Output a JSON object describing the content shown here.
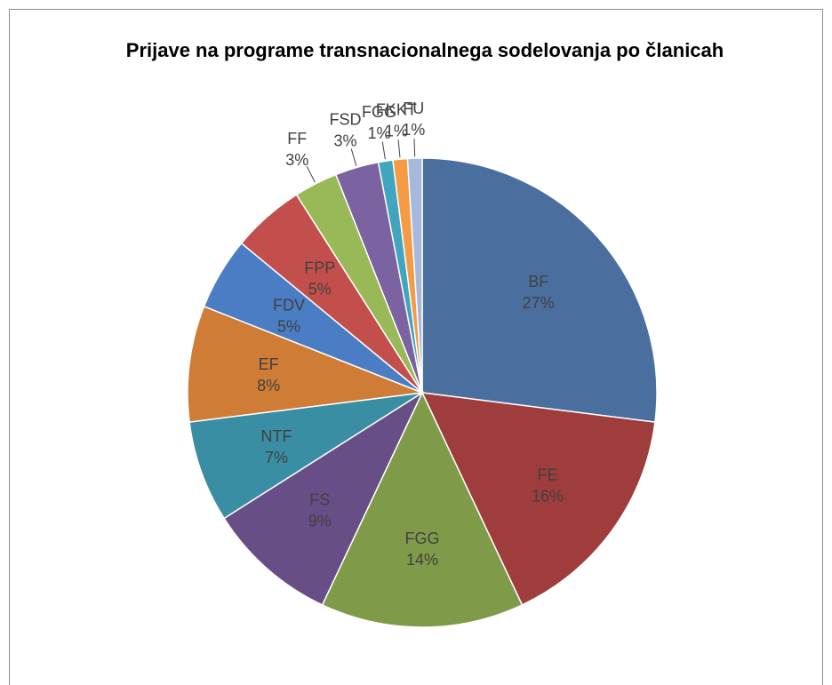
{
  "chart_data": {
    "type": "pie",
    "title": "Prijave na programe transnacionalnega sodelovanja po članicah",
    "categories": [
      "BF",
      "FE",
      "FGG",
      "FS",
      "NTF",
      "EF",
      "FDV",
      "FPP",
      "FF",
      "FSD",
      "FGG",
      "FKKT",
      "FU"
    ],
    "values": [
      27,
      16,
      14,
      9,
      7,
      8,
      5,
      5,
      3,
      3,
      1,
      1,
      1
    ],
    "value_labels": [
      "27%",
      "16%",
      "14%",
      "9%",
      "7%",
      "8%",
      "5%",
      "5%",
      "3%",
      "3%",
      "1%",
      "1%",
      "1%"
    ],
    "colors": [
      "#4a6f9f",
      "#9e3d3b",
      "#7f9b49",
      "#674e87",
      "#3a8ea3",
      "#cf7c37",
      "#4b7dc4",
      "#c24f4c",
      "#99b958",
      "#7b62a0",
      "#41a5c0",
      "#f49b46",
      "#a6b9db"
    ]
  }
}
